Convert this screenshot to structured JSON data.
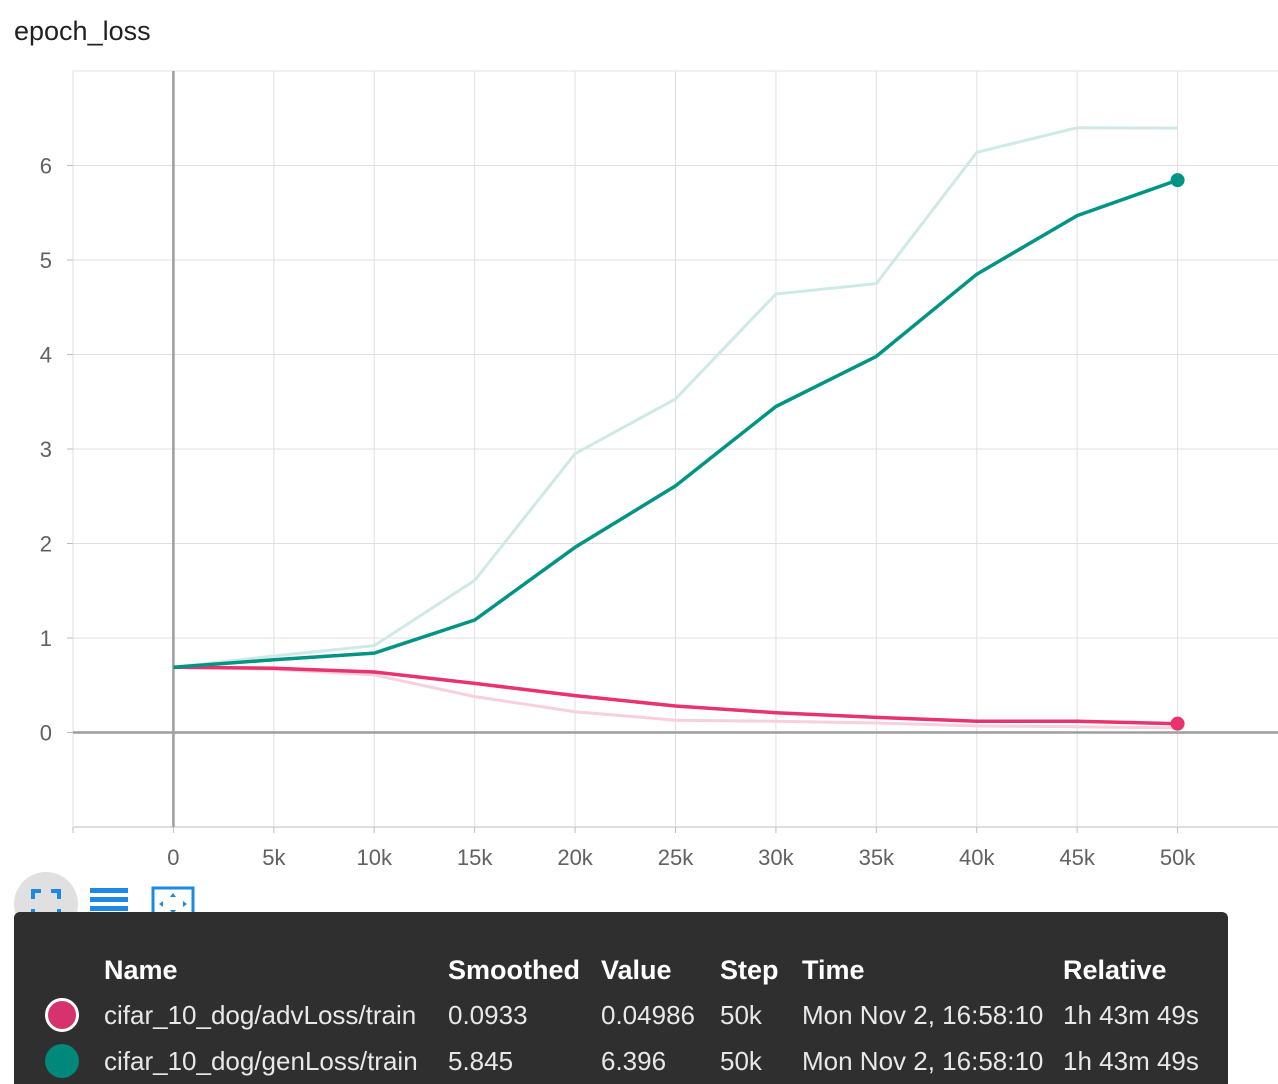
{
  "chart_data": {
    "type": "line",
    "title": "epoch_loss",
    "xlabel": "",
    "ylabel": "",
    "xlim": [
      -5000,
      55000
    ],
    "ylim": [
      -1,
      7
    ],
    "x_ticks": [
      0,
      5000,
      10000,
      15000,
      20000,
      25000,
      30000,
      35000,
      40000,
      45000,
      50000
    ],
    "x_tick_labels": [
      "0",
      "5k",
      "10k",
      "15k",
      "20k",
      "25k",
      "30k",
      "35k",
      "40k",
      "45k",
      "50k"
    ],
    "y_ticks": [
      0,
      1,
      2,
      3,
      4,
      5,
      6
    ],
    "y_tick_labels": [
      "0",
      "1",
      "2",
      "3",
      "4",
      "5",
      "6"
    ],
    "grid": true,
    "series": [
      {
        "name": "cifar_10_dog/advLoss/train",
        "color": "#e8336e",
        "raw_color": "#f8cfdc",
        "x": [
          0,
          5000,
          10000,
          15000,
          20000,
          25000,
          30000,
          35000,
          40000,
          45000,
          50000
        ],
        "smoothed": [
          0.69,
          0.68,
          0.64,
          0.52,
          0.39,
          0.28,
          0.21,
          0.16,
          0.12,
          0.12,
          0.0933
        ],
        "raw": [
          0.69,
          0.67,
          0.61,
          0.38,
          0.22,
          0.13,
          0.12,
          0.1,
          0.07,
          0.06,
          0.04986
        ]
      },
      {
        "name": "cifar_10_dog/genLoss/train",
        "color": "#009485",
        "raw_color": "#cfe9e6",
        "x": [
          0,
          5000,
          10000,
          15000,
          20000,
          25000,
          30000,
          35000,
          40000,
          45000,
          50000
        ],
        "smoothed": [
          0.69,
          0.77,
          0.84,
          1.19,
          1.96,
          2.61,
          3.45,
          3.98,
          4.85,
          5.47,
          5.845
        ],
        "raw": [
          0.69,
          0.81,
          0.92,
          1.61,
          2.95,
          3.53,
          4.64,
          4.75,
          6.14,
          6.4,
          6.396
        ]
      }
    ]
  },
  "toolbar": {
    "expand_icon": "fullscreen-icon",
    "lines_icon": "toggle-log-lines-icon",
    "fit_icon": "fit-domain-icon"
  },
  "tooltip": {
    "headers": {
      "name": "Name",
      "smoothed": "Smoothed",
      "value": "Value",
      "step": "Step",
      "time": "Time",
      "relative": "Relative"
    },
    "rows": [
      {
        "name": "cifar_10_dog/advLoss/train",
        "smoothed": "0.0933",
        "value": "0.04986",
        "step": "50k",
        "time": "Mon Nov 2, 16:58:10",
        "relative": "1h 43m 49s",
        "color": "#d6336c"
      },
      {
        "name": "cifar_10_dog/genLoss/train",
        "smoothed": "5.845",
        "value": "6.396",
        "step": "50k",
        "time": "Mon Nov 2, 16:58:10",
        "relative": "1h 43m 49s",
        "color": "#00897b"
      }
    ]
  }
}
